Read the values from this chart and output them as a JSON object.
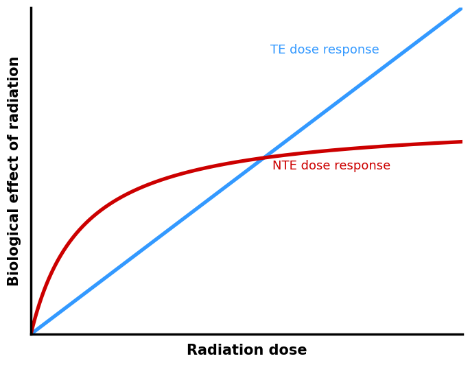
{
  "title": "",
  "xlabel": "Radiation dose",
  "ylabel": "Biological effect of radiation",
  "xlabel_fontsize": 15,
  "ylabel_fontsize": 15,
  "xlabel_fontweight": "bold",
  "ylabel_fontweight": "bold",
  "xlim": [
    0,
    10
  ],
  "ylim": [
    0,
    10
  ],
  "te_label": "TE dose response",
  "nte_label": "NTE dose response",
  "te_color": "#3399FF",
  "nte_color": "#CC0000",
  "te_linewidth": 3.8,
  "nte_linewidth": 3.8,
  "te_label_color": "#3399FF",
  "nte_label_color": "#CC0000",
  "te_label_fontsize": 13,
  "nte_label_fontsize": 13,
  "background_color": "#ffffff",
  "spine_linewidth": 2.5,
  "nte_max": 6.6,
  "nte_half": 1.2
}
